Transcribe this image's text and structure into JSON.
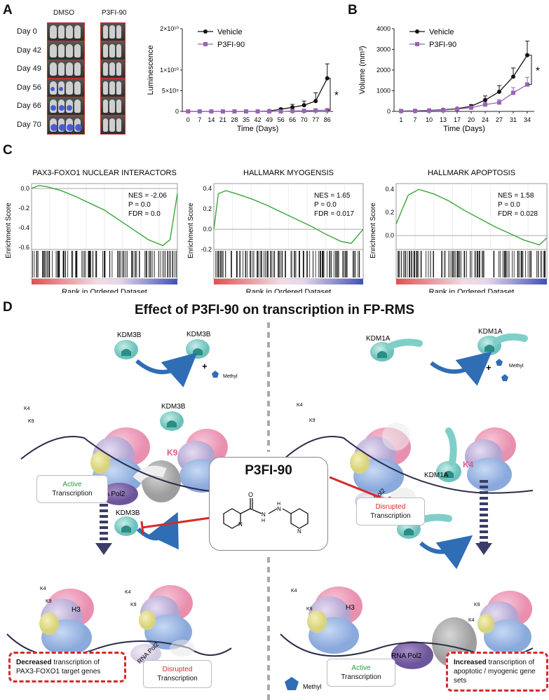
{
  "panels": {
    "a": "A",
    "b": "B",
    "c": "C",
    "d": "D"
  },
  "panel_a_images": {
    "col_left": "DMSO",
    "col_right": "P3FI-90",
    "days": [
      "Day 0",
      "Day 42",
      "Day 49",
      "Day 56",
      "Day 66",
      "Day 70"
    ]
  },
  "chart_data": [
    {
      "type": "line",
      "xlabel": "Time (Days)",
      "ylabel": "Luminescence",
      "categories": [
        "0",
        "7",
        "14",
        "21",
        "28",
        "35",
        "42",
        "49",
        "56",
        "66",
        "70",
        "77",
        "86"
      ],
      "ytick_labels": [
        "0",
        "5×10⁹",
        "1×10¹⁰",
        "2×10¹⁰"
      ],
      "ylim": [
        0,
        20000000000
      ],
      "series": [
        {
          "name": "Vehicle",
          "color": "#111111",
          "values": [
            0,
            0,
            0,
            0,
            0,
            0,
            0,
            100000000,
            500000000,
            1000000000,
            1500000000,
            2500000000,
            8000000000
          ],
          "error": [
            0,
            0,
            0,
            0,
            0,
            0,
            0,
            100000000,
            300000000,
            700000000,
            1000000000,
            2000000000,
            3500000000
          ]
        },
        {
          "name": "P3FI-90",
          "color": "#9a63b8",
          "values": [
            0,
            0,
            0,
            0,
            0,
            0,
            0,
            0,
            0,
            100000000,
            150000000,
            250000000,
            300000000
          ],
          "error": [
            0,
            0,
            0,
            0,
            0,
            0,
            0,
            0,
            0,
            50000000,
            100000000,
            150000000,
            150000000
          ]
        }
      ],
      "significance": "*"
    },
    {
      "type": "line",
      "xlabel": "Time (Days)",
      "ylabel": "Volume (mm³)",
      "categories": [
        "1",
        "7",
        "10",
        "13",
        "17",
        "20",
        "24",
        "27",
        "31",
        "34"
      ],
      "yticks": [
        0,
        1000,
        2000,
        3000,
        4000
      ],
      "ylim": [
        0,
        4000
      ],
      "series": [
        {
          "name": "Vehicle",
          "color": "#111111",
          "values": [
            20,
            30,
            50,
            80,
            130,
            250,
            550,
            950,
            1680,
            2720
          ],
          "error": [
            10,
            10,
            20,
            30,
            40,
            80,
            200,
            300,
            420,
            680
          ]
        },
        {
          "name": "P3FI-90",
          "color": "#9a63b8",
          "values": [
            20,
            25,
            40,
            60,
            110,
            180,
            330,
            430,
            900,
            1300
          ],
          "error": [
            10,
            10,
            15,
            25,
            30,
            50,
            100,
            140,
            250,
            350
          ]
        }
      ],
      "significance": "*"
    },
    {
      "type": "line",
      "title": "PAX3-FOXO1 NUCLEAR INTERACTORS",
      "ylabel": "Enrichment Score",
      "xlabel": "Rank in Ordered Dataset",
      "yticks": [
        0.0,
        -0.2,
        -0.4,
        -0.6
      ],
      "ytick_labels": [
        "0.0",
        "-0.2",
        "-0.4",
        "-0.6"
      ],
      "ylim": [
        -0.62,
        0.05
      ],
      "x": [
        0,
        5,
        10,
        20,
        30,
        40,
        50,
        60,
        70,
        80,
        90,
        95,
        100
      ],
      "values": [
        0.0,
        0.03,
        0.02,
        -0.02,
        -0.08,
        -0.15,
        -0.22,
        -0.32,
        -0.42,
        -0.52,
        -0.58,
        -0.52,
        -0.05
      ],
      "stats": [
        "NES = -2.06",
        "P = 0.0",
        "FDR = 0.0"
      ]
    },
    {
      "type": "line",
      "title": "HALLMARK MYOGENSIS",
      "ylabel": "Enrichment Score",
      "xlabel": "Rank in Ordered Dataset",
      "yticks": [
        0.4,
        0.2,
        0.0,
        -0.2
      ],
      "ytick_labels": [
        "0.4",
        "0.2",
        "0.0",
        "-0.2"
      ],
      "ylim": [
        -0.2,
        0.45
      ],
      "x": [
        0,
        3,
        8,
        15,
        25,
        35,
        45,
        55,
        65,
        75,
        85,
        92,
        100
      ],
      "values": [
        0.0,
        0.35,
        0.38,
        0.35,
        0.3,
        0.24,
        0.17,
        0.1,
        0.03,
        -0.05,
        -0.12,
        -0.14,
        0.0
      ],
      "stats": [
        "NES = 1.65",
        "P = 0.0",
        "FDR = 0.017"
      ]
    },
    {
      "type": "line",
      "title": "HALLMARK APOPTOSIS",
      "ylabel": "Enrichment Score",
      "xlabel": "Rank in Ordered Dataset",
      "yticks": [
        0.4,
        0.2,
        0.0
      ],
      "ytick_labels": [
        "0.4",
        "0.2",
        "0.0"
      ],
      "ylim": [
        -0.12,
        0.45
      ],
      "x": [
        0,
        8,
        15,
        25,
        35,
        45,
        55,
        65,
        75,
        85,
        95,
        100
      ],
      "values": [
        0.1,
        0.35,
        0.4,
        0.36,
        0.3,
        0.22,
        0.15,
        0.08,
        0.02,
        -0.04,
        -0.08,
        -0.02
      ],
      "stats": [
        "NES = 1.58",
        "P = 0.0",
        "FDR = 0.028"
      ]
    }
  ],
  "panel_d": {
    "title": "Effect of P3FI-90 on transcription in FP-RMS",
    "drug": "P3FI-90",
    "kdm3b": "KDM3B",
    "kdm1a": "KDM1A",
    "methyl": "Methyl",
    "plus": "+",
    "k4": "K4",
    "k9": "K9",
    "h3": "H3",
    "pol2": "RNA Pol2",
    "active": "Active",
    "disrupted": "Disrupted",
    "transcription": "Transcription",
    "left_box_bold": "Decreased",
    "left_box_rest": " transcription of PAX3-FOXO1 target genes",
    "right_box_bold": "Increased",
    "right_box_rest": " transcription of apoptotic / myogenic gene sets",
    "colors": {
      "active": "#2e9b3a",
      "disrupted": "#d52a2a",
      "inhibit": "#d52a2a",
      "arrow": "#2f6db5",
      "methyl": "#2f6db5",
      "k_mark": "#e0578f"
    }
  }
}
